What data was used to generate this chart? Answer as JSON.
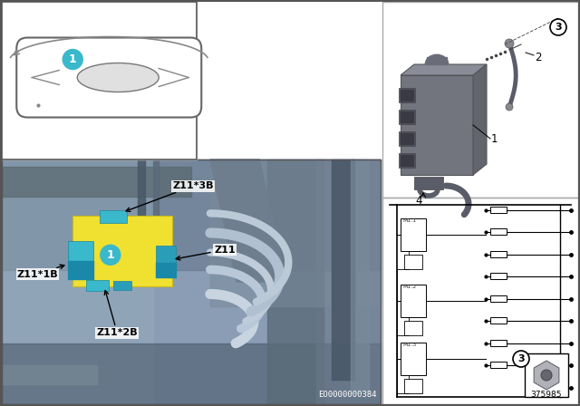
{
  "bg_color": "#ffffff",
  "accent_yellow": "#f0e030",
  "accent_blue": "#3ab8cc",
  "accent_blue2": "#2a9db8",
  "photo_bg": "#8899aa",
  "photo_dark": "#5a6a78",
  "photo_mid": "#9aabbf",
  "photo_light": "#b8c8d8",
  "car_line": "#888888",
  "part_labels": [
    "Z11*3B",
    "Z11",
    "Z11*1B",
    "Z11*2B"
  ],
  "footer_text": "EO0000000384",
  "part_number": "375985",
  "layout": {
    "car_panel": [
      2,
      272,
      215,
      174
    ],
    "photo": [
      2,
      2,
      418,
      270
    ],
    "component_panel": [
      422,
      230,
      216,
      216
    ],
    "circuit_panel": [
      422,
      2,
      216,
      228
    ],
    "border_lw": 1.5
  }
}
